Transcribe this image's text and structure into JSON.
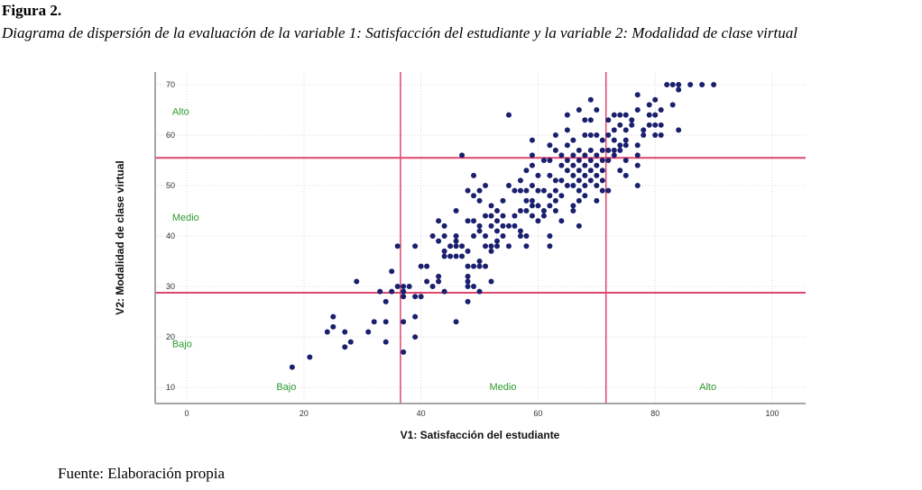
{
  "figure": {
    "label": "Figura 2.",
    "caption": "Diagrama de dispersión de la evaluación de la variable 1: Satisfacción del estudiante y la variable 2: Modalidad de clase virtual",
    "source": "Fuente: Elaboración propia"
  },
  "chart_data": {
    "type": "scatter",
    "title": "",
    "xlabel": "V1: Satisfacción del estudiante",
    "ylabel": "V2: Modalidad de clase virtual",
    "xlim": [
      -5.4,
      105.7
    ],
    "ylim": [
      6.8,
      72.5
    ],
    "xticks": [
      0,
      20,
      40,
      60,
      80,
      100
    ],
    "yticks": [
      10,
      20,
      30,
      40,
      50,
      60,
      70
    ],
    "grid": true,
    "reference_lines": {
      "x": [
        36.5,
        71.6
      ],
      "y": [
        28.75,
        55.5
      ]
    },
    "zone_labels_x": [
      {
        "text": "Bajo",
        "x": 17,
        "y": 9.5
      },
      {
        "text": "Medio",
        "x": 54,
        "y": 9.5
      },
      {
        "text": "Alto",
        "x": 89,
        "y": 9.5
      }
    ],
    "zone_labels_y": [
      {
        "text": "Alto",
        "x": 0,
        "y": 64
      },
      {
        "text": "Medio",
        "x": 0,
        "y": 43
      },
      {
        "text": "Bajo",
        "x": 0,
        "y": 18
      }
    ],
    "colors": {
      "points": "#1a1f6e",
      "reference": "#e0466e",
      "zone": "#2f9a2f",
      "grid": "#d8d8d8"
    },
    "points": [
      [
        18,
        14
      ],
      [
        21,
        16
      ],
      [
        24,
        21
      ],
      [
        25,
        22
      ],
      [
        25,
        24
      ],
      [
        27,
        21
      ],
      [
        27,
        18
      ],
      [
        28,
        19
      ],
      [
        29,
        31
      ],
      [
        31,
        21
      ],
      [
        32,
        23
      ],
      [
        33,
        29
      ],
      [
        34,
        27
      ],
      [
        34,
        23
      ],
      [
        34,
        19
      ],
      [
        35,
        29
      ],
      [
        35,
        33
      ],
      [
        36,
        38
      ],
      [
        36,
        30
      ],
      [
        37,
        30
      ],
      [
        37,
        29
      ],
      [
        37,
        28
      ],
      [
        37,
        23
      ],
      [
        37,
        17
      ],
      [
        38,
        30
      ],
      [
        39,
        38
      ],
      [
        39,
        28
      ],
      [
        39,
        24
      ],
      [
        39,
        20
      ],
      [
        40,
        34
      ],
      [
        40,
        28
      ],
      [
        41,
        34
      ],
      [
        42,
        40
      ],
      [
        41,
        31
      ],
      [
        42,
        30
      ],
      [
        43,
        39
      ],
      [
        43,
        32
      ],
      [
        43,
        31
      ],
      [
        43,
        43
      ],
      [
        44,
        42
      ],
      [
        44,
        40
      ],
      [
        44,
        37
      ],
      [
        44,
        36
      ],
      [
        44,
        29
      ],
      [
        45,
        38
      ],
      [
        45,
        36
      ],
      [
        46,
        40
      ],
      [
        46,
        39
      ],
      [
        46,
        38
      ],
      [
        46,
        36
      ],
      [
        47,
        38
      ],
      [
        47,
        36
      ],
      [
        46,
        45
      ],
      [
        46,
        23
      ],
      [
        47,
        56
      ],
      [
        48,
        43
      ],
      [
        48,
        37
      ],
      [
        48,
        34
      ],
      [
        48,
        32
      ],
      [
        48,
        31
      ],
      [
        48,
        30
      ],
      [
        48,
        27
      ],
      [
        48,
        49
      ],
      [
        49,
        52
      ],
      [
        49,
        48
      ],
      [
        49,
        43
      ],
      [
        49,
        40
      ],
      [
        49,
        34
      ],
      [
        49,
        30
      ],
      [
        50,
        49
      ],
      [
        50,
        47
      ],
      [
        50,
        42
      ],
      [
        50,
        41
      ],
      [
        50,
        35
      ],
      [
        50,
        34
      ],
      [
        50,
        29
      ],
      [
        51,
        50
      ],
      [
        51,
        44
      ],
      [
        51,
        40
      ],
      [
        51,
        38
      ],
      [
        51,
        34
      ],
      [
        52,
        46
      ],
      [
        52,
        44
      ],
      [
        52,
        42
      ],
      [
        52,
        38
      ],
      [
        52,
        37
      ],
      [
        52,
        31
      ],
      [
        53,
        45
      ],
      [
        53,
        43
      ],
      [
        53,
        41
      ],
      [
        53,
        39
      ],
      [
        53,
        38
      ],
      [
        54,
        47
      ],
      [
        54,
        44
      ],
      [
        54,
        42
      ],
      [
        54,
        40
      ],
      [
        55,
        64
      ],
      [
        55,
        50
      ],
      [
        55,
        42
      ],
      [
        55,
        38
      ],
      [
        56,
        49
      ],
      [
        56,
        44
      ],
      [
        56,
        42
      ],
      [
        57,
        51
      ],
      [
        57,
        49
      ],
      [
        57,
        45
      ],
      [
        57,
        41
      ],
      [
        57,
        40
      ],
      [
        58,
        53
      ],
      [
        58,
        49
      ],
      [
        58,
        47
      ],
      [
        58,
        45
      ],
      [
        58,
        40
      ],
      [
        58,
        38
      ],
      [
        59,
        59
      ],
      [
        59,
        56
      ],
      [
        59,
        54
      ],
      [
        59,
        50
      ],
      [
        59,
        47
      ],
      [
        59,
        46
      ],
      [
        59,
        44
      ],
      [
        60,
        52
      ],
      [
        60,
        49
      ],
      [
        60,
        46
      ],
      [
        60,
        43
      ],
      [
        61,
        55
      ],
      [
        61,
        49
      ],
      [
        61,
        45
      ],
      [
        61,
        44
      ],
      [
        62,
        58
      ],
      [
        62,
        55
      ],
      [
        62,
        52
      ],
      [
        62,
        48
      ],
      [
        62,
        46
      ],
      [
        62,
        40
      ],
      [
        62,
        38
      ],
      [
        63,
        57
      ],
      [
        63,
        51
      ],
      [
        63,
        49
      ],
      [
        63,
        47
      ],
      [
        63,
        45
      ],
      [
        63,
        60
      ],
      [
        64,
        56
      ],
      [
        64,
        54
      ],
      [
        64,
        51
      ],
      [
        64,
        48
      ],
      [
        64,
        43
      ],
      [
        65,
        61
      ],
      [
        65,
        58
      ],
      [
        65,
        55
      ],
      [
        65,
        53
      ],
      [
        65,
        50
      ],
      [
        65,
        64
      ],
      [
        66,
        59
      ],
      [
        66,
        56
      ],
      [
        66,
        54
      ],
      [
        66,
        52
      ],
      [
        66,
        50
      ],
      [
        66,
        46
      ],
      [
        66,
        45
      ],
      [
        67,
        65
      ],
      [
        67,
        57
      ],
      [
        67,
        55
      ],
      [
        67,
        53
      ],
      [
        67,
        51
      ],
      [
        67,
        49
      ],
      [
        67,
        47
      ],
      [
        67,
        42
      ],
      [
        68,
        63
      ],
      [
        68,
        60
      ],
      [
        68,
        56
      ],
      [
        68,
        54
      ],
      [
        68,
        52
      ],
      [
        68,
        50
      ],
      [
        68,
        48
      ],
      [
        69,
        67
      ],
      [
        69,
        63
      ],
      [
        69,
        60
      ],
      [
        69,
        57
      ],
      [
        69,
        55
      ],
      [
        69,
        53
      ],
      [
        69,
        51
      ],
      [
        70,
        65
      ],
      [
        70,
        60
      ],
      [
        70,
        56
      ],
      [
        70,
        54
      ],
      [
        70,
        52
      ],
      [
        70,
        50
      ],
      [
        70,
        47
      ],
      [
        71,
        59
      ],
      [
        71,
        57
      ],
      [
        71,
        55
      ],
      [
        71,
        53
      ],
      [
        71,
        51
      ],
      [
        71,
        49
      ],
      [
        72,
        63
      ],
      [
        72,
        60
      ],
      [
        72,
        57
      ],
      [
        72,
        55
      ],
      [
        72,
        49
      ],
      [
        73,
        64
      ],
      [
        73,
        61
      ],
      [
        73,
        59
      ],
      [
        73,
        57
      ],
      [
        73,
        56
      ],
      [
        74,
        64
      ],
      [
        74,
        62
      ],
      [
        74,
        58
      ],
      [
        74,
        57
      ],
      [
        74,
        53
      ],
      [
        75,
        64
      ],
      [
        75,
        61
      ],
      [
        75,
        59
      ],
      [
        75,
        58
      ],
      [
        75,
        55
      ],
      [
        75,
        52
      ],
      [
        76,
        62
      ],
      [
        77,
        68
      ],
      [
        77,
        65
      ],
      [
        77,
        58
      ],
      [
        77,
        56
      ],
      [
        77,
        54
      ],
      [
        77,
        50
      ],
      [
        78,
        60
      ],
      [
        79,
        66
      ],
      [
        79,
        64
      ],
      [
        79,
        62
      ],
      [
        80,
        67
      ],
      [
        80,
        62
      ],
      [
        80,
        60
      ],
      [
        81,
        65
      ],
      [
        81,
        62
      ],
      [
        81,
        60
      ],
      [
        82,
        70
      ],
      [
        83,
        70
      ],
      [
        83,
        66
      ],
      [
        84,
        70
      ],
      [
        84,
        69
      ],
      [
        84,
        61
      ],
      [
        86,
        70
      ],
      [
        88,
        70
      ],
      [
        90,
        70
      ],
      [
        76,
        63
      ],
      [
        78,
        61
      ],
      [
        80,
        64
      ]
    ]
  }
}
